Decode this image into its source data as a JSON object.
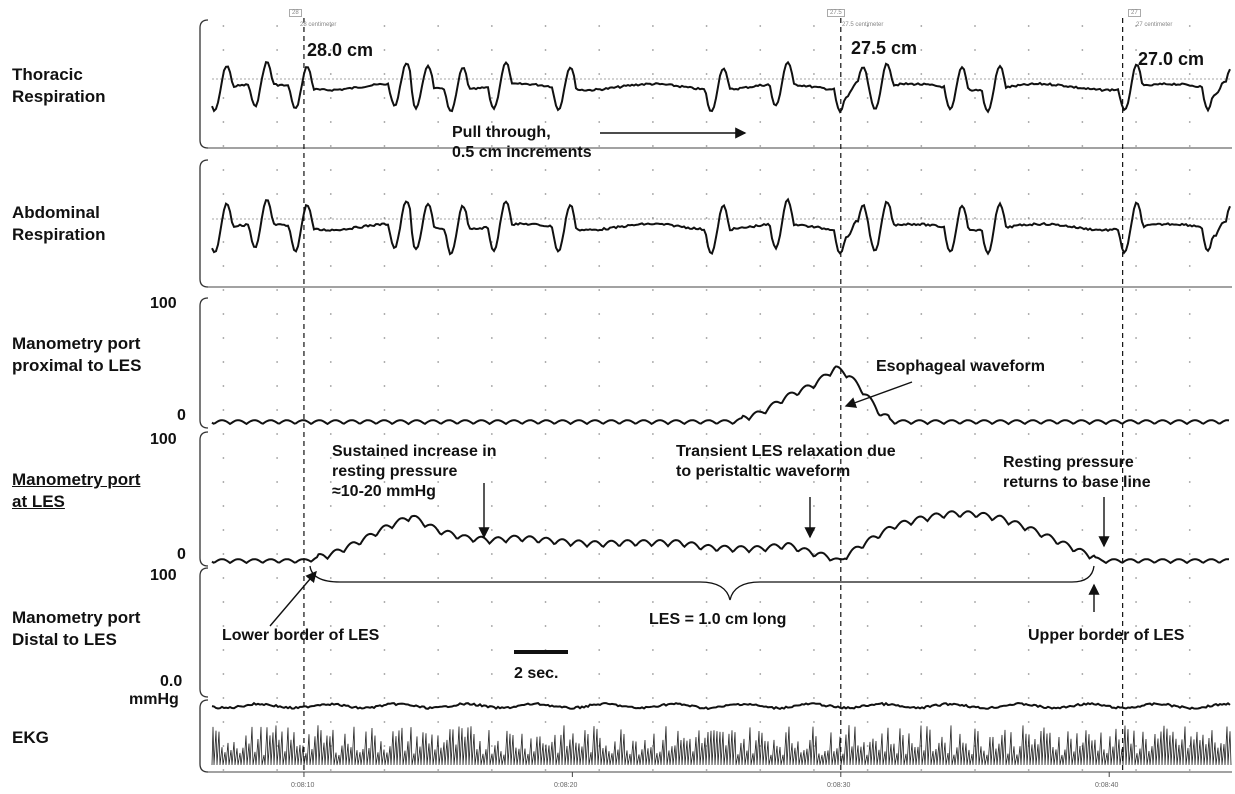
{
  "channels": [
    {
      "label_lines": [
        "Thoracic",
        "Respiration"
      ],
      "underline": false
    },
    {
      "label_lines": [
        "Abdominal",
        "Respiration"
      ],
      "underline": false
    },
    {
      "label_lines": [
        "Manometry port",
        "proximal to LES"
      ],
      "underline": false
    },
    {
      "label_lines": [
        "Manometry port",
        "at LES"
      ],
      "underline": true
    },
    {
      "label_lines": [
        "Manometry port",
        "Distal to LES"
      ],
      "underline": false
    },
    {
      "label_lines": [
        "EKG"
      ],
      "underline": false
    }
  ],
  "scale_labels": {
    "prox_max": "100",
    "prox_min": "0",
    "les_max": "100",
    "les_min": "0",
    "dist_max": "100",
    "dist_min": "0.0",
    "unit": "mmHg"
  },
  "position_markers": [
    {
      "label": "28.0 cm",
      "tag": "28",
      "small": "28 centimeter",
      "time": 10
    },
    {
      "label": "27.5 cm",
      "tag": "27.5",
      "small": "27.5 centimeter",
      "time": 30
    },
    {
      "label": "27.0 cm",
      "tag": "27",
      "small": "27 centimeter",
      "time": 40.5
    }
  ],
  "annotations": {
    "pull_through": [
      "Pull through,",
      "0.5 cm increments"
    ],
    "esophageal": "Esophageal waveform",
    "sustained": [
      "Sustained increase in",
      "resting pressure",
      "≈10-20 mmHg"
    ],
    "transient": [
      "Transient LES relaxation due",
      "to peristaltic waveform"
    ],
    "resting_return": [
      "Resting pressure",
      "returns to base line"
    ],
    "lower_border": "Lower border of LES",
    "upper_border": "Upper border of LES",
    "les_length": "LES = 1.0 cm long",
    "scale_bar": "2 sec."
  },
  "chart_data": {
    "type": "line",
    "x_unit": "time",
    "x_tick_labels": [
      "0:08:10",
      "0:08:20",
      "0:08:30",
      "0:08:40"
    ],
    "x_tick_times": [
      10,
      20,
      30,
      40
    ],
    "xlim": [
      6.5,
      44.5
    ],
    "series": [
      {
        "name": "Manometry port proximal to LES",
        "ylim": [
          0,
          100
        ],
        "points": [
          [
            6.5,
            0
          ],
          [
            26,
            0
          ],
          [
            27,
            6
          ],
          [
            28,
            20
          ],
          [
            29,
            30
          ],
          [
            29.8,
            44
          ],
          [
            30.3,
            38
          ],
          [
            31,
            20
          ],
          [
            31.5,
            5
          ],
          [
            32,
            0
          ],
          [
            44.5,
            0
          ]
        ]
      },
      {
        "name": "Manometry port at LES",
        "ylim": [
          0,
          100
        ],
        "points": [
          [
            6.5,
            0
          ],
          [
            10,
            0
          ],
          [
            11,
            4
          ],
          [
            12,
            14
          ],
          [
            13,
            26
          ],
          [
            14,
            36
          ],
          [
            15,
            24
          ],
          [
            16,
            18
          ],
          [
            17,
            16
          ],
          [
            18,
            18
          ],
          [
            19,
            16
          ],
          [
            20,
            14
          ],
          [
            21,
            13
          ],
          [
            22,
            14
          ],
          [
            23,
            14
          ],
          [
            24,
            14
          ],
          [
            25,
            10
          ],
          [
            26,
            9
          ],
          [
            27,
            9
          ],
          [
            28,
            12
          ],
          [
            29,
            5
          ],
          [
            30,
            0
          ],
          [
            31,
            15
          ],
          [
            32,
            28
          ],
          [
            33,
            34
          ],
          [
            34,
            38
          ],
          [
            35,
            38
          ],
          [
            36,
            34
          ],
          [
            37,
            26
          ],
          [
            38,
            16
          ],
          [
            39,
            6
          ],
          [
            39.7,
            0
          ],
          [
            44.5,
            0
          ]
        ]
      }
    ]
  }
}
